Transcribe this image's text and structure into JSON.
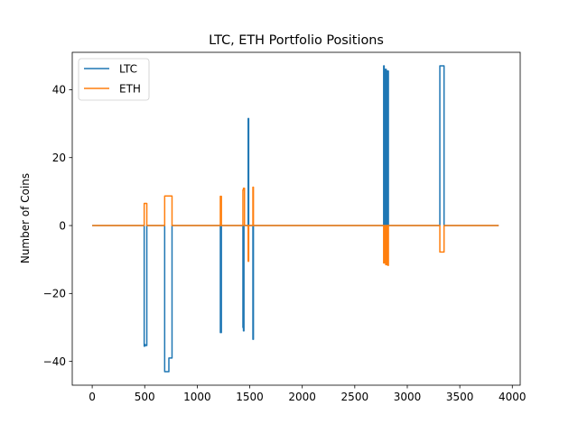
{
  "chart_data": {
    "type": "line",
    "title": "LTC, ETH Portfolio Positions",
    "xlabel": "",
    "ylabel": "Number of Coins",
    "xlim": [
      -190,
      4075
    ],
    "ylim": [
      -47,
      51
    ],
    "xticks": [
      0,
      500,
      1000,
      1500,
      2000,
      2500,
      3000,
      3500,
      4000
    ],
    "yticks": [
      -40,
      -20,
      0,
      20,
      40
    ],
    "grid": false,
    "legend_position": "top-left",
    "series": [
      {
        "name": "LTC",
        "color": "#1f77b4",
        "x": [
          0,
          495,
          495,
          500,
          500,
          505,
          505,
          520,
          520,
          690,
          690,
          730,
          730,
          760,
          760,
          1220,
          1220,
          1230,
          1230,
          1435,
          1435,
          1440,
          1440,
          1445,
          1445,
          1450,
          1450,
          1485,
          1485,
          1490,
          1490,
          1530,
          1530,
          1535,
          1535,
          2775,
          2775,
          2780,
          2780,
          2785,
          2785,
          2790,
          2790,
          2795,
          2795,
          2800,
          2800,
          2805,
          2805,
          2810,
          2810,
          2815,
          2815,
          2820,
          2820,
          3310,
          3310,
          3350,
          3350,
          3870
        ],
        "y": [
          0,
          0,
          -35.5,
          -35.5,
          -35,
          -35,
          -35.3,
          -35.3,
          0,
          0,
          -43,
          -43,
          -39,
          -39,
          0,
          0,
          -31.5,
          -31.5,
          0,
          0,
          -30,
          -30,
          -31,
          -31,
          0,
          0,
          0,
          0,
          31.5,
          31.5,
          0,
          0,
          -33.5,
          -33.5,
          0,
          0,
          47,
          47,
          0,
          0,
          46,
          46,
          0,
          0,
          46,
          46,
          0,
          0,
          45.5,
          45.5,
          0,
          0,
          45.5,
          45.5,
          0,
          0,
          47,
          47,
          0,
          0
        ]
      },
      {
        "name": "ETH",
        "color": "#ff7f0e",
        "x": [
          0,
          495,
          495,
          520,
          520,
          690,
          690,
          760,
          760,
          1220,
          1220,
          1230,
          1230,
          1435,
          1435,
          1440,
          1440,
          1450,
          1450,
          1485,
          1485,
          1490,
          1490,
          1530,
          1530,
          1535,
          1535,
          2775,
          2775,
          2785,
          2785,
          2795,
          2795,
          2805,
          2805,
          2815,
          2815,
          2820,
          2820,
          3310,
          3310,
          3350,
          3350,
          3870
        ],
        "y": [
          0,
          0,
          6.5,
          6.5,
          0,
          0,
          8.7,
          8.7,
          0,
          0,
          8.6,
          8.6,
          0,
          0,
          10.5,
          10.5,
          11,
          11,
          0,
          0,
          -10.5,
          -10.5,
          0,
          0,
          11.3,
          11.3,
          0,
          0,
          -11,
          -11,
          0,
          0,
          -11.5,
          -11.5,
          0,
          0,
          -11.7,
          -11.7,
          0,
          0,
          -7.8,
          -7.8,
          0,
          0
        ]
      }
    ]
  }
}
